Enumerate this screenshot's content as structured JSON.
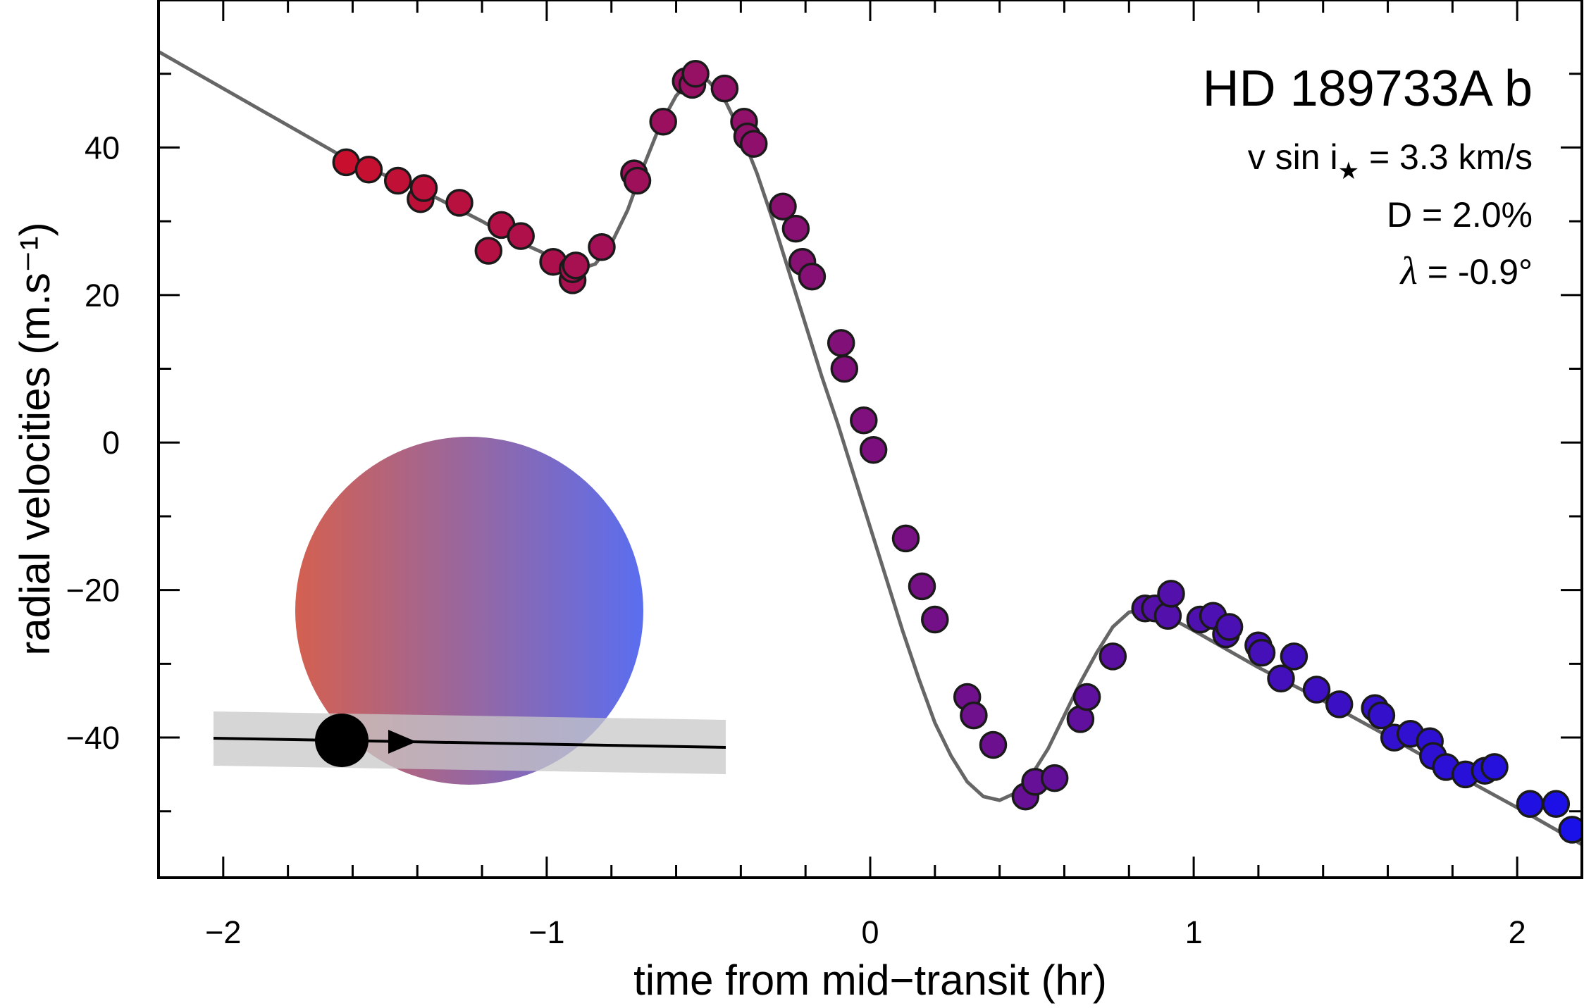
{
  "chart_data": {
    "type": "scatter",
    "title": "HD 189733A b",
    "xlabel": "time from mid−transit (hr)",
    "ylabel": "radial velocities (m.s⁻¹)",
    "xlim": [
      -2.2,
      2.2
    ],
    "ylim": [
      -59,
      60
    ],
    "x_ticks": [
      -2,
      -1,
      0,
      1,
      2
    ],
    "x_tick_labels": [
      "−2",
      "−1",
      "0",
      "1",
      "2"
    ],
    "y_ticks": [
      -40,
      -20,
      0,
      20,
      40
    ],
    "y_tick_labels": [
      "−40",
      "−20",
      "0",
      "20",
      "40"
    ],
    "grid": false,
    "annotations": {
      "vsini_prefix": "v sin i",
      "vsini_star": "★",
      "vsini_suffix": " = 3.3 km/s",
      "depth": "D =  2.0%",
      "lambda_symbol": "λ",
      "lambda_value": " = -0.9°"
    },
    "colors": {
      "start": "#c8102e",
      "end": "#1a10e8",
      "model": "#666666",
      "disk_left": "#d46050",
      "disk_right": "#5a6ef0",
      "band": "#c8c8c8"
    },
    "series": [
      {
        "label": "data",
        "x": [
          -1.62,
          -1.55,
          -1.46,
          -1.39,
          -1.38,
          -1.27,
          -1.18,
          -1.14,
          -1.08,
          -0.98,
          -0.92,
          -0.92,
          -0.91,
          -0.83,
          -0.73,
          -0.72,
          -0.64,
          -0.57,
          -0.55,
          -0.54,
          -0.45,
          -0.39,
          -0.38,
          -0.36,
          -0.27,
          -0.23,
          -0.21,
          -0.18,
          -0.09,
          -0.08,
          -0.02,
          0.01,
          0.11,
          0.16,
          0.2,
          0.3,
          0.32,
          0.38,
          0.48,
          0.51,
          0.57,
          0.65,
          0.67,
          0.75,
          0.85,
          0.88,
          0.92,
          0.93,
          1.02,
          1.06,
          1.1,
          1.11,
          1.2,
          1.21,
          1.27,
          1.31,
          1.38,
          1.45,
          1.56,
          1.58,
          1.62,
          1.67,
          1.73,
          1.74,
          1.78,
          1.84,
          1.9,
          1.93,
          2.04,
          2.12,
          2.17
        ],
        "y": [
          38,
          37,
          35.5,
          33,
          34.5,
          32.5,
          26,
          29.5,
          28,
          24.5,
          22,
          23.5,
          24,
          26.5,
          36.5,
          35.5,
          43.5,
          49,
          48.5,
          50,
          48,
          43.5,
          41.5,
          40.5,
          32,
          29,
          24.5,
          22.5,
          13.5,
          10,
          3,
          -1,
          -13,
          -19.5,
          -24,
          -34.5,
          -37,
          -41,
          -48,
          -46,
          -45.5,
          -37.5,
          -34.5,
          -29,
          -22.5,
          -22.5,
          -23.5,
          -20.5,
          -24,
          -23.5,
          -26,
          -25,
          -27.5,
          -28.5,
          -32,
          -29,
          -33.5,
          -35.5,
          -36,
          -37,
          -40,
          -39.5,
          -40.5,
          -42.5,
          -44,
          -45,
          -44.5,
          -44,
          -49,
          -49,
          -52.5
        ]
      },
      {
        "label": "model",
        "x": [
          -2.2,
          -1.6,
          -1.4,
          -1.2,
          -1.1,
          -1.0,
          -0.9,
          -0.85,
          -0.8,
          -0.75,
          -0.7,
          -0.65,
          -0.6,
          -0.55,
          -0.5,
          -0.45,
          -0.4,
          -0.35,
          -0.3,
          -0.25,
          -0.2,
          -0.15,
          -0.1,
          -0.05,
          0.0,
          0.05,
          0.1,
          0.15,
          0.2,
          0.25,
          0.3,
          0.35,
          0.4,
          0.45,
          0.5,
          0.55,
          0.6,
          0.65,
          0.7,
          0.75,
          0.8,
          0.85,
          0.9,
          0.95,
          1.0,
          1.1,
          1.2,
          1.4,
          1.6,
          1.8,
          2.0,
          2.2
        ],
        "y": [
          53,
          38,
          34.5,
          30,
          27.5,
          25.5,
          23.5,
          24.2,
          27,
          31.5,
          37.5,
          43,
          47,
          49.5,
          49,
          46.5,
          42,
          36.5,
          30,
          23,
          16,
          9,
          2.5,
          -4.5,
          -11.5,
          -18.5,
          -25.5,
          -32,
          -38,
          -42.5,
          -46,
          -48,
          -48.5,
          -47.5,
          -45,
          -41.5,
          -37,
          -32.5,
          -28.5,
          -25,
          -23,
          -22.7,
          -23.3,
          -24.3,
          -25.5,
          -28,
          -30.5,
          -35,
          -39.8,
          -44.7,
          -49.5,
          -54.5
        ]
      }
    ]
  }
}
